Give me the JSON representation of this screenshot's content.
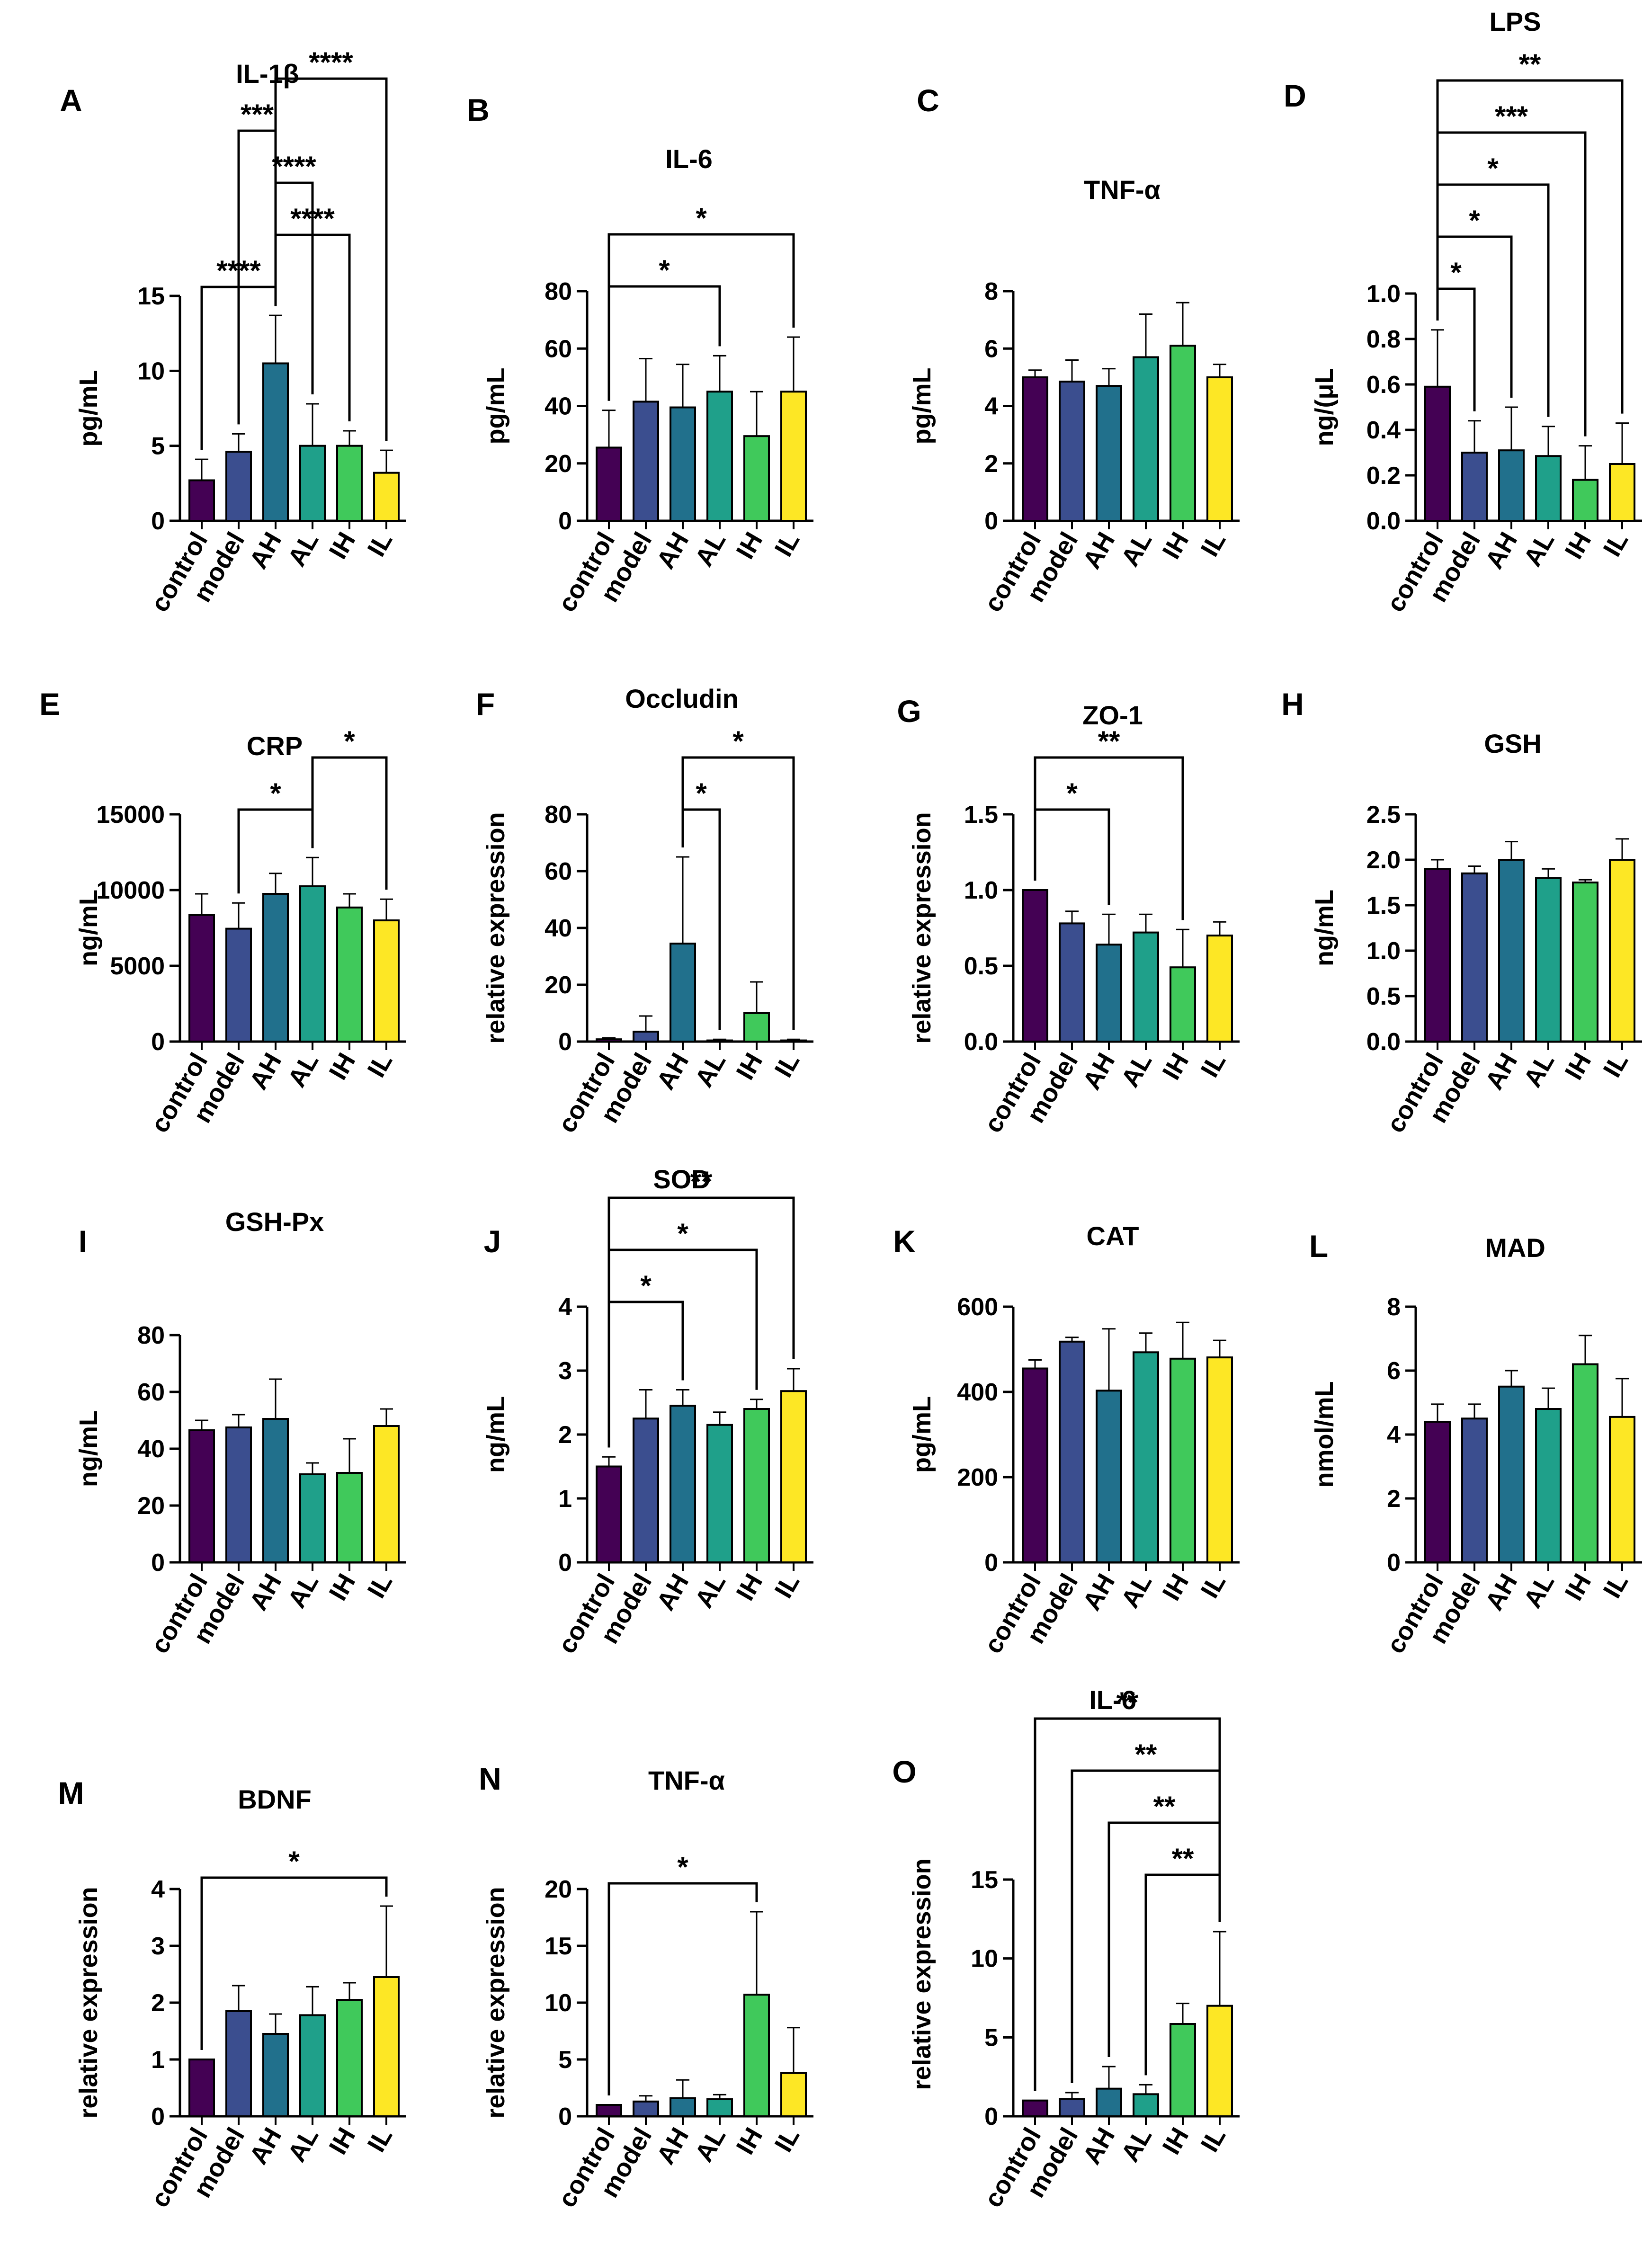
{
  "figure": {
    "categories": [
      "control",
      "model",
      "AH",
      "AL",
      "IH",
      "IL"
    ],
    "colors": [
      "#440154",
      "#3b4e8f",
      "#21708c",
      "#1fa08a",
      "#40c95b",
      "#fde725"
    ]
  },
  "chart_data": [
    {
      "id": "A",
      "type": "bar",
      "title": "IL-1β",
      "ylabel": "pg/mL",
      "ylim": [
        0,
        15
      ],
      "yticks": [
        0,
        5,
        10,
        15
      ],
      "tick_labels": [
        "0",
        "5",
        "10",
        "15"
      ],
      "categories": [
        "control",
        "model",
        "AH",
        "AL",
        "IH",
        "IL"
      ],
      "values": [
        2.7,
        4.6,
        10.5,
        5.0,
        5.0,
        3.2
      ],
      "errors": [
        1.4,
        1.2,
        3.2,
        2.8,
        1.0,
        1.5
      ],
      "significance": [
        {
          "label": "****",
          "from": "control",
          "to": "AH"
        },
        {
          "label": "****",
          "from": "AH",
          "to": "IH"
        },
        {
          "label": "****",
          "from": "AH",
          "to": "AL"
        },
        {
          "label": "***",
          "from": "model",
          "to": "AH"
        },
        {
          "label": "****",
          "from": "AH",
          "to": "IL"
        }
      ]
    },
    {
      "id": "B",
      "type": "bar",
      "title": "IL-6",
      "ylabel": "pg/mL",
      "ylim": [
        0,
        80
      ],
      "yticks": [
        0,
        20,
        40,
        60,
        80
      ],
      "tick_labels": [
        "0",
        "20",
        "40",
        "60",
        "80"
      ],
      "categories": [
        "control",
        "model",
        "AH",
        "AL",
        "IH",
        "IL"
      ],
      "values": [
        25.5,
        41.5,
        39.5,
        45.0,
        29.5,
        45.0
      ],
      "errors": [
        13.0,
        15.0,
        15.0,
        12.5,
        15.5,
        19.0
      ],
      "significance": [
        {
          "label": "*",
          "from": "control",
          "to": "AL"
        },
        {
          "label": "*",
          "from": "control",
          "to": "IL"
        }
      ]
    },
    {
      "id": "C",
      "type": "bar",
      "title": "TNF-α",
      "ylabel": "pg/mL",
      "ylim": [
        0,
        8
      ],
      "yticks": [
        0,
        2,
        4,
        6,
        8
      ],
      "tick_labels": [
        "0",
        "2",
        "4",
        "6",
        "8"
      ],
      "categories": [
        "control",
        "model",
        "AH",
        "AL",
        "IH",
        "IL"
      ],
      "values": [
        5.0,
        4.85,
        4.7,
        5.7,
        6.1,
        5.0
      ],
      "errors": [
        0.25,
        0.75,
        0.6,
        1.5,
        1.5,
        0.45
      ],
      "significance": []
    },
    {
      "id": "D",
      "type": "bar",
      "title": "LPS",
      "ylabel": "ng/(μL",
      "ylim": [
        0,
        1.0
      ],
      "yticks": [
        0,
        0.2,
        0.4,
        0.6,
        0.8,
        1.0
      ],
      "tick_labels": [
        "0.0",
        "0.2",
        "0.4",
        "0.6",
        "0.8",
        "1.0"
      ],
      "categories": [
        "control",
        "model",
        "AH",
        "AL",
        "IH",
        "IL"
      ],
      "values": [
        0.59,
        0.3,
        0.31,
        0.285,
        0.18,
        0.25
      ],
      "errors": [
        0.25,
        0.14,
        0.19,
        0.13,
        0.15,
        0.18
      ],
      "significance": [
        {
          "label": "*",
          "from": "control",
          "to": "model"
        },
        {
          "label": "*",
          "from": "control",
          "to": "AH"
        },
        {
          "label": "*",
          "from": "control",
          "to": "AL"
        },
        {
          "label": "***",
          "from": "control",
          "to": "IH"
        },
        {
          "label": "**",
          "from": "control",
          "to": "IL"
        }
      ]
    },
    {
      "id": "E",
      "type": "bar",
      "title": "CRP",
      "ylabel": "ng/mL",
      "ylim": [
        0,
        15000
      ],
      "yticks": [
        0,
        5000,
        10000,
        15000
      ],
      "tick_labels": [
        "0",
        "5000",
        "10000",
        "15000"
      ],
      "categories": [
        "control",
        "model",
        "AH",
        "AL",
        "IH",
        "IL"
      ],
      "values": [
        8350,
        7450,
        9750,
        10250,
        8850,
        8000
      ],
      "errors": [
        1400,
        1700,
        1350,
        1900,
        900,
        1400
      ],
      "significance": [
        {
          "label": "*",
          "from": "model",
          "to": "AL"
        },
        {
          "label": "*",
          "from": "AL",
          "to": "IL"
        }
      ]
    },
    {
      "id": "F",
      "type": "bar",
      "title": "Occludin",
      "ylabel": "relative expression",
      "ylim": [
        0,
        80
      ],
      "yticks": [
        0,
        20,
        40,
        60,
        80
      ],
      "tick_labels": [
        "0",
        "20",
        "40",
        "60",
        "80"
      ],
      "categories": [
        "control",
        "model",
        "AH",
        "AL",
        "IH",
        "IL"
      ],
      "values": [
        0.8,
        3.5,
        34.5,
        0.4,
        10.0,
        0.4
      ],
      "errors": [
        0.5,
        5.5,
        30.5,
        0.4,
        11.0,
        0.4
      ],
      "significance": [
        {
          "label": "*",
          "from": "AH",
          "to": "AL"
        },
        {
          "label": "*",
          "from": "AH",
          "to": "IL"
        }
      ]
    },
    {
      "id": "G",
      "type": "bar",
      "title": "ZO-1",
      "ylabel": "relative expression",
      "ylim": [
        0,
        1.5
      ],
      "yticks": [
        0,
        0.5,
        1.0,
        1.5
      ],
      "tick_labels": [
        "0.0",
        "0.5",
        "1.0",
        "1.5"
      ],
      "categories": [
        "control",
        "model",
        "AH",
        "AL",
        "IH",
        "IL"
      ],
      "values": [
        1.0,
        0.78,
        0.64,
        0.72,
        0.49,
        0.7
      ],
      "errors": [
        0.0,
        0.08,
        0.2,
        0.12,
        0.25,
        0.09
      ],
      "significance": [
        {
          "label": "*",
          "from": "control",
          "to": "AH"
        },
        {
          "label": "**",
          "from": "control",
          "to": "IH"
        }
      ]
    },
    {
      "id": "H",
      "type": "bar",
      "title": "GSH",
      "ylabel": "ng/mL",
      "ylim": [
        0,
        2.5
      ],
      "yticks": [
        0,
        0.5,
        1.0,
        1.5,
        2.0,
        2.5
      ],
      "tick_labels": [
        "0.0",
        "0.5",
        "1.0",
        "1.5",
        "2.0",
        "2.5"
      ],
      "categories": [
        "control",
        "model",
        "AH",
        "AL",
        "IH",
        "IL"
      ],
      "values": [
        1.9,
        1.85,
        2.0,
        1.8,
        1.75,
        2.0
      ],
      "errors": [
        0.1,
        0.08,
        0.2,
        0.1,
        0.03,
        0.23
      ],
      "significance": []
    },
    {
      "id": "I",
      "type": "bar",
      "title": "GSH-Px",
      "ylabel": "ng/mL",
      "ylim": [
        0,
        80
      ],
      "yticks": [
        0,
        20,
        40,
        60,
        80
      ],
      "tick_labels": [
        "0",
        "20",
        "40",
        "60",
        "80"
      ],
      "categories": [
        "control",
        "model",
        "AH",
        "AL",
        "IH",
        "IL"
      ],
      "values": [
        46.5,
        47.5,
        50.5,
        31.0,
        31.5,
        48.0
      ],
      "errors": [
        3.5,
        4.5,
        14.0,
        4.0,
        12.0,
        6.0
      ],
      "significance": []
    },
    {
      "id": "J",
      "type": "bar",
      "title": "SOD",
      "ylabel": "ng/mL",
      "ylim": [
        0,
        4
      ],
      "yticks": [
        0,
        1,
        2,
        3,
        4
      ],
      "tick_labels": [
        "0",
        "1",
        "2",
        "3",
        "4"
      ],
      "categories": [
        "control",
        "model",
        "AH",
        "AL",
        "IH",
        "IL"
      ],
      "values": [
        1.5,
        2.25,
        2.45,
        2.15,
        2.4,
        2.68
      ],
      "errors": [
        0.15,
        0.45,
        0.25,
        0.2,
        0.15,
        0.35
      ],
      "significance": [
        {
          "label": "*",
          "from": "control",
          "to": "AH"
        },
        {
          "label": "*",
          "from": "control",
          "to": "IH"
        },
        {
          "label": "**",
          "from": "control",
          "to": "IL"
        }
      ]
    },
    {
      "id": "K",
      "type": "bar",
      "title": "CAT",
      "ylabel": "pg/mL",
      "ylim": [
        0,
        600
      ],
      "yticks": [
        0,
        200,
        400,
        600
      ],
      "tick_labels": [
        "0",
        "200",
        "400",
        "600"
      ],
      "categories": [
        "control",
        "model",
        "AH",
        "AL",
        "IH",
        "IL"
      ],
      "values": [
        455,
        518,
        403,
        493,
        478,
        481
      ],
      "errors": [
        20,
        10,
        145,
        45,
        85,
        40
      ],
      "significance": []
    },
    {
      "id": "L",
      "type": "bar",
      "title": "MAD",
      "ylabel": "nmol/mL",
      "ylim": [
        0,
        8
      ],
      "yticks": [
        0,
        2,
        4,
        6,
        8
      ],
      "tick_labels": [
        "0",
        "2",
        "4",
        "6",
        "8"
      ],
      "categories": [
        "control",
        "model",
        "AH",
        "AL",
        "IH",
        "IL"
      ],
      "values": [
        4.4,
        4.5,
        5.5,
        4.8,
        6.2,
        4.55
      ],
      "errors": [
        0.55,
        0.45,
        0.5,
        0.65,
        0.9,
        1.2
      ],
      "significance": []
    },
    {
      "id": "M",
      "type": "bar",
      "title": "BDNF",
      "ylabel": "relative expression",
      "ylim": [
        0,
        4
      ],
      "yticks": [
        0,
        1,
        2,
        3,
        4
      ],
      "tick_labels": [
        "0",
        "1",
        "2",
        "3",
        "4"
      ],
      "categories": [
        "control",
        "model",
        "AH",
        "AL",
        "IH",
        "IL"
      ],
      "values": [
        1.0,
        1.85,
        1.45,
        1.78,
        2.05,
        2.45
      ],
      "errors": [
        0.0,
        0.45,
        0.35,
        0.5,
        0.3,
        1.25
      ],
      "significance": [
        {
          "label": "*",
          "from": "control",
          "to": "IL"
        }
      ]
    },
    {
      "id": "N",
      "type": "bar",
      "title": "TNF-α",
      "ylabel": "relative expression",
      "ylim": [
        0,
        20
      ],
      "yticks": [
        0,
        5,
        10,
        15,
        20
      ],
      "tick_labels": [
        "0",
        "5",
        "10",
        "15",
        "20"
      ],
      "categories": [
        "control",
        "model",
        "AH",
        "AL",
        "IH",
        "IL"
      ],
      "values": [
        1.0,
        1.3,
        1.6,
        1.5,
        10.7,
        3.8
      ],
      "errors": [
        0.0,
        0.5,
        1.6,
        0.4,
        7.3,
        4.0
      ],
      "significance": [
        {
          "label": "*",
          "from": "control",
          "to": "IH"
        }
      ]
    },
    {
      "id": "O",
      "type": "bar",
      "title": "IL-6",
      "ylabel": "relative expression",
      "ylim": [
        0,
        18
      ],
      "yticks": [
        0,
        5,
        10,
        15
      ],
      "tick_labels": [
        "0",
        "5",
        "10",
        "15"
      ],
      "categories": [
        "control",
        "model",
        "AH",
        "AL",
        "IH",
        "IL"
      ],
      "values": [
        1.0,
        1.1,
        1.75,
        1.4,
        5.85,
        7.0
      ],
      "errors": [
        0.0,
        0.4,
        1.4,
        0.6,
        1.3,
        4.7
      ],
      "significance": [
        {
          "label": "**",
          "from": "IL",
          "to": "AL"
        },
        {
          "label": "**",
          "from": "IL",
          "to": "AH"
        },
        {
          "label": "**",
          "from": "IL",
          "to": "model"
        },
        {
          "label": "**",
          "from": "IL",
          "to": "control"
        }
      ]
    }
  ]
}
